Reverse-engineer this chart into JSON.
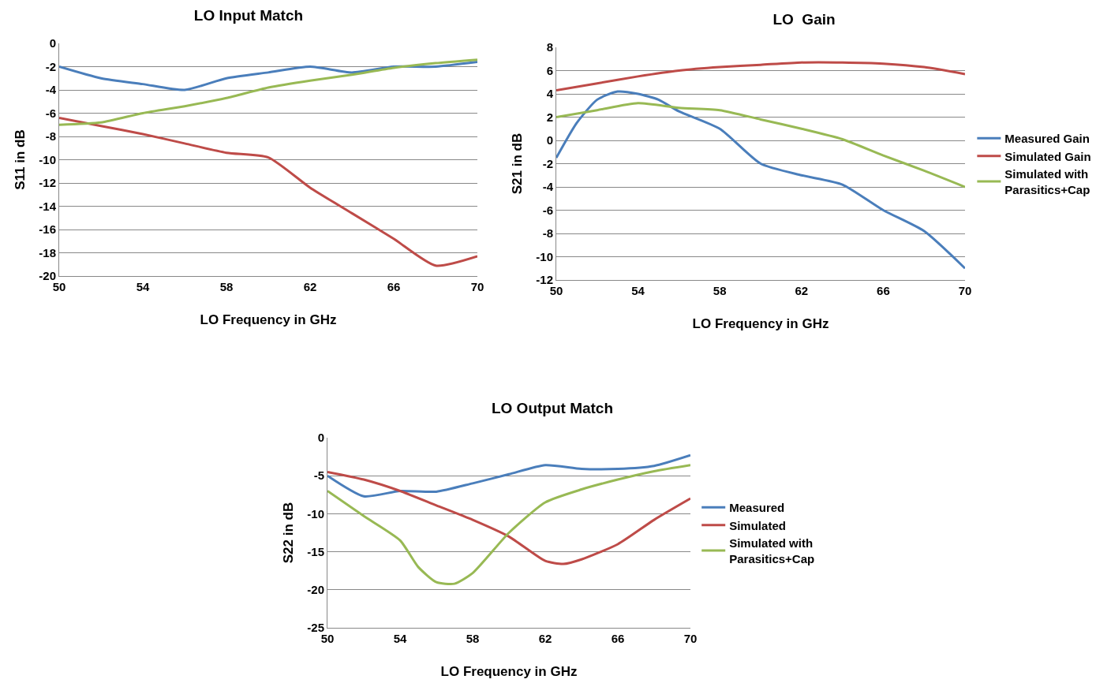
{
  "chart_data": [
    {
      "type": "line",
      "title": "LO Input Match",
      "xlabel": "LO Frequency in GHz",
      "ylabel": "S11 in dB",
      "xlim": [
        50,
        70
      ],
      "xticks": [
        50,
        54,
        58,
        62,
        66,
        70
      ],
      "ylim": [
        -20,
        0
      ],
      "yticks": [
        -20,
        -18,
        -16,
        -14,
        -12,
        -10,
        -8,
        -6,
        -4,
        -2,
        0
      ],
      "grid": "y",
      "legend": false,
      "marker": "none",
      "line_style": "solid",
      "x": [
        50,
        52,
        54,
        56,
        58,
        60,
        62,
        64,
        66,
        68,
        70
      ],
      "series": [
        {
          "color": "#4a7ebb",
          "values": [
            -2,
            -3,
            -3.5,
            -4,
            -3,
            -2.5,
            -2,
            -2.5,
            -2,
            -2,
            -1.6
          ]
        },
        {
          "color": "#be4b48",
          "values": [
            -6.4,
            -7.1,
            -7.8,
            -8.6,
            -9.4,
            -9.8,
            -12.4,
            -14.6,
            -16.8,
            -19.1,
            -18.3
          ]
        },
        {
          "color": "#98b954",
          "values": [
            -7,
            -6.8,
            -6,
            -5.4,
            -4.7,
            -3.8,
            -3.2,
            -2.7,
            -2.1,
            -1.7,
            -1.4
          ]
        }
      ]
    },
    {
      "type": "line",
      "title": "LO  Gain",
      "xlabel": "LO Frequency in GHz",
      "ylabel": "S21 in dB",
      "xlim": [
        50,
        70
      ],
      "xticks": [
        50,
        54,
        58,
        62,
        66,
        70
      ],
      "ylim": [
        -12,
        8
      ],
      "yticks": [
        -12,
        -10,
        -8,
        -6,
        -4,
        -2,
        0,
        2,
        4,
        6,
        8
      ],
      "grid": "y",
      "legend": "right",
      "marker": "none",
      "line_style": "solid",
      "series": [
        {
          "name": "Measured Gain",
          "color": "#4a7ebb",
          "x": [
            50,
            51,
            52,
            53,
            54,
            55,
            56,
            58,
            60,
            62,
            64,
            66,
            68,
            70
          ],
          "values": [
            -1.5,
            1.5,
            3.5,
            4.2,
            4,
            3.5,
            2.5,
            1,
            -2,
            -3,
            -3.8,
            -6,
            -7.8,
            -11
          ]
        },
        {
          "name": "Simulated Gain",
          "color": "#be4b48",
          "x": [
            50,
            52,
            54,
            56,
            58,
            60,
            62,
            64,
            66,
            68,
            70
          ],
          "values": [
            4.3,
            4.9,
            5.5,
            6,
            6.3,
            6.5,
            6.7,
            6.7,
            6.6,
            6.3,
            5.7
          ]
        },
        {
          "name": "Simulated with Parasitics+Cap",
          "color": "#98b954",
          "x": [
            50,
            52,
            54,
            56,
            58,
            60,
            62,
            64,
            66,
            68,
            70
          ],
          "values": [
            2,
            2.6,
            3.2,
            2.8,
            2.6,
            1.8,
            1,
            0.1,
            -1.3,
            -2.6,
            -4
          ]
        }
      ]
    },
    {
      "type": "line",
      "title": "LO Output Match",
      "xlabel": "LO Frequency in GHz",
      "ylabel": "S22 in dB",
      "xlim": [
        50,
        70
      ],
      "xticks": [
        50,
        54,
        58,
        62,
        66,
        70
      ],
      "ylim": [
        -25,
        0
      ],
      "yticks": [
        -25,
        -20,
        -15,
        -10,
        -5,
        0
      ],
      "grid": "y",
      "legend": "right",
      "marker": "none",
      "line_style": "solid",
      "series": [
        {
          "name": "Measured",
          "color": "#4a7ebb",
          "x": [
            50,
            52,
            54,
            56,
            58,
            60,
            62,
            64,
            66,
            68,
            70
          ],
          "values": [
            -5,
            -7.7,
            -7,
            -7.1,
            -6,
            -4.8,
            -3.6,
            -4.1,
            -4.1,
            -3.7,
            -2.3
          ]
        },
        {
          "name": "Simulated",
          "color": "#be4b48",
          "x": [
            50,
            52,
            54,
            56,
            58,
            60,
            62,
            63,
            64,
            66,
            68,
            70
          ],
          "values": [
            -4.5,
            -5.5,
            -7,
            -8.9,
            -10.8,
            -13,
            -16.2,
            -16.6,
            -16,
            -14,
            -10.8,
            -8
          ]
        },
        {
          "name": "Simulated with Parasitics+Cap",
          "color": "#98b954",
          "x": [
            50,
            52,
            54,
            55,
            56,
            57,
            58,
            60,
            62,
            64,
            66,
            68,
            70
          ],
          "values": [
            -7,
            -10.3,
            -13.5,
            -17,
            -19,
            -19.2,
            -17.8,
            -12.5,
            -8.5,
            -6.8,
            -5.5,
            -4.4,
            -3.6
          ]
        }
      ]
    }
  ]
}
